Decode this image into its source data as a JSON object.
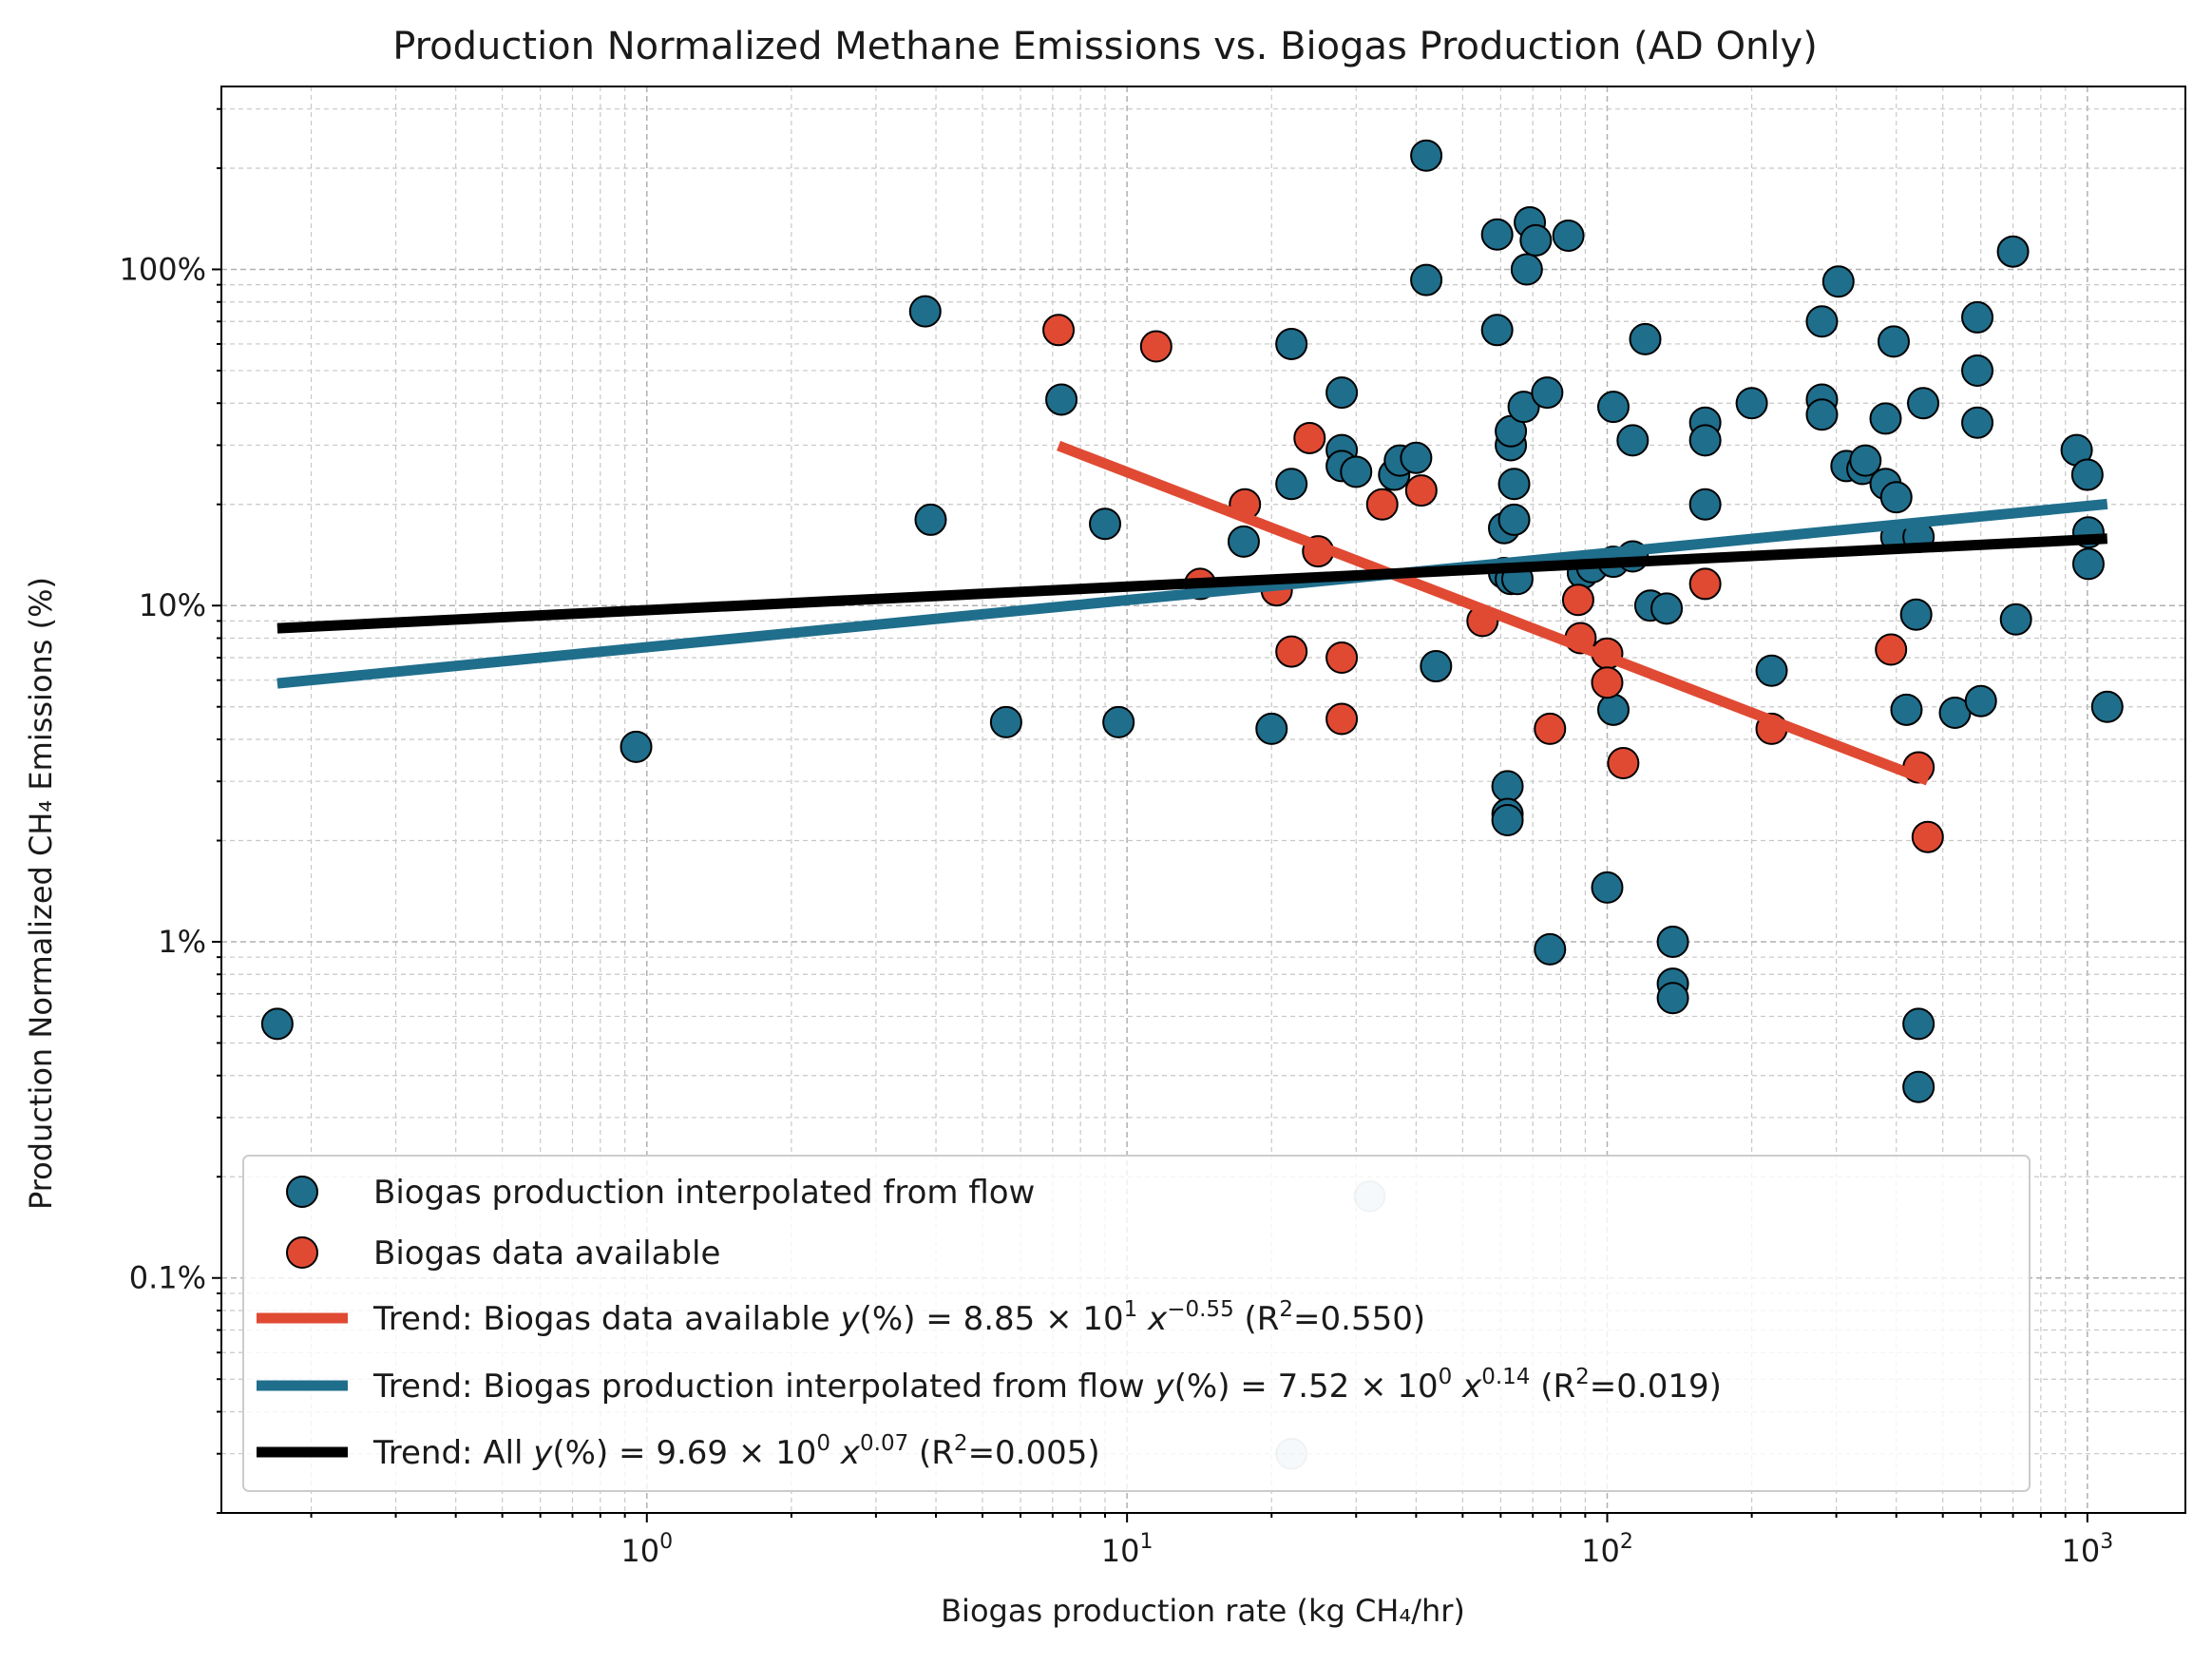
{
  "chart_data": {
    "type": "scatter",
    "title": "Production Normalized Methane Emissions vs. Biogas Production (AD Only)",
    "xlabel": "Biogas production rate (kg CH₄/hr)",
    "ylabel": "Production Normalized CH₄ Emissions (%)",
    "xscale": "log",
    "yscale": "log",
    "xlim": [
      0.13,
      1600
    ],
    "ylim": [
      0.02,
      350
    ],
    "x_ticks": [
      {
        "value": 1,
        "base": "10",
        "exp": "0"
      },
      {
        "value": 10,
        "base": "10",
        "exp": "1"
      },
      {
        "value": 100,
        "base": "10",
        "exp": "2"
      },
      {
        "value": 1000,
        "base": "10",
        "exp": "3"
      }
    ],
    "y_ticks": [
      {
        "value": 0.1,
        "label": "0.1%"
      },
      {
        "value": 1,
        "label": "1%"
      },
      {
        "value": 10,
        "label": "10%"
      },
      {
        "value": 100,
        "label": "100%"
      }
    ],
    "grid": true,
    "legend_position": "lower-left",
    "colors": {
      "interpolated": "#1f6e8c",
      "available": "#e04a33",
      "all": "#000000"
    },
    "series": [
      {
        "name": "Biogas production interpolated from flow",
        "kind": "scatter",
        "color": "#1f6e8c",
        "points": [
          [
            0.17,
            0.57
          ],
          [
            0.95,
            3.8
          ],
          [
            3.8,
            75
          ],
          [
            3.9,
            18
          ],
          [
            5.6,
            4.5
          ],
          [
            7.3,
            41
          ],
          [
            9.0,
            17.5
          ],
          [
            9.6,
            4.5
          ],
          [
            17.5,
            15.5
          ],
          [
            20,
            4.3
          ],
          [
            22,
            60
          ],
          [
            22,
            23
          ],
          [
            28,
            43
          ],
          [
            28,
            29
          ],
          [
            28,
            26
          ],
          [
            30,
            25
          ],
          [
            36,
            24.5
          ],
          [
            37,
            27
          ],
          [
            40,
            27.5
          ],
          [
            42,
            218
          ],
          [
            42,
            93
          ],
          [
            44,
            6.6
          ],
          [
            59,
            127
          ],
          [
            59,
            66
          ],
          [
            61,
            17
          ],
          [
            61,
            12.5
          ],
          [
            62,
            2.9
          ],
          [
            62,
            2.4
          ],
          [
            62,
            2.3
          ],
          [
            63,
            12
          ],
          [
            63,
            30
          ],
          [
            63,
            33
          ],
          [
            64,
            23
          ],
          [
            64,
            18
          ],
          [
            65,
            12
          ],
          [
            67,
            39
          ],
          [
            68,
            100
          ],
          [
            69,
            138
          ],
          [
            71,
            122
          ],
          [
            75,
            43
          ],
          [
            76,
            0.95
          ],
          [
            83,
            126
          ],
          [
            89,
            12.5
          ],
          [
            93,
            13
          ],
          [
            100,
            1.45
          ],
          [
            103,
            39
          ],
          [
            103,
            13.5
          ],
          [
            103,
            4.9
          ],
          [
            113,
            31
          ],
          [
            113,
            14
          ],
          [
            120,
            62
          ],
          [
            123,
            10
          ],
          [
            133,
            9.8
          ],
          [
            137,
            1.0
          ],
          [
            137,
            0.75
          ],
          [
            137,
            0.68
          ],
          [
            160,
            35
          ],
          [
            160,
            31
          ],
          [
            160,
            20
          ],
          [
            200,
            40
          ],
          [
            220,
            6.4
          ],
          [
            280,
            70
          ],
          [
            280,
            41
          ],
          [
            280,
            37
          ],
          [
            303,
            92
          ],
          [
            315,
            26
          ],
          [
            340,
            25.5
          ],
          [
            345,
            27
          ],
          [
            380,
            23
          ],
          [
            380,
            36
          ],
          [
            395,
            61
          ],
          [
            400,
            21
          ],
          [
            400,
            16
          ],
          [
            420,
            4.9
          ],
          [
            440,
            9.4
          ],
          [
            445,
            16
          ],
          [
            445,
            0.57
          ],
          [
            445,
            0.37
          ],
          [
            455,
            40
          ],
          [
            530,
            4.8
          ],
          [
            590,
            72
          ],
          [
            590,
            50
          ],
          [
            590,
            35
          ],
          [
            600,
            5.2
          ],
          [
            700,
            113
          ],
          [
            710,
            9.1
          ],
          [
            950,
            29
          ],
          [
            1000,
            24.5
          ],
          [
            1005,
            16.5
          ],
          [
            1005,
            13.3
          ],
          [
            1100,
            5.0
          ],
          [
            32,
            0.175
          ],
          [
            22,
            0.03
          ]
        ]
      },
      {
        "name": "Biogas data available",
        "kind": "scatter",
        "color": "#e04a33",
        "points": [
          [
            7.2,
            66
          ],
          [
            11.5,
            59
          ],
          [
            14.2,
            11.6
          ],
          [
            17.6,
            20
          ],
          [
            20.5,
            11.1
          ],
          [
            22,
            7.3
          ],
          [
            24,
            31.5
          ],
          [
            25,
            14.5
          ],
          [
            28,
            7.0
          ],
          [
            28,
            4.6
          ],
          [
            34,
            20
          ],
          [
            41,
            22
          ],
          [
            55,
            9.0
          ],
          [
            76,
            4.3
          ],
          [
            87,
            10.4
          ],
          [
            88,
            8.0
          ],
          [
            100,
            7.2
          ],
          [
            100,
            5.9
          ],
          [
            108,
            3.4
          ],
          [
            160,
            11.6
          ],
          [
            220,
            4.3
          ],
          [
            390,
            7.4
          ],
          [
            445,
            3.3
          ],
          [
            465,
            2.05
          ]
        ]
      },
      {
        "name": "Trend: Biogas data available",
        "kind": "trend",
        "color": "#e04a33",
        "coef": 88.5,
        "exponent": -0.55,
        "x_range": [
          7.2,
          465
        ],
        "label_prefix": "Trend: Biogas data available ",
        "coef_text": "8.85",
        "pow_text": "1",
        "exp_text": "−0.55",
        "r2_text": "=0.550)"
      },
      {
        "name": "Trend: Biogas production interpolated from flow",
        "kind": "trend",
        "color": "#1f6e8c",
        "coef": 7.52,
        "exponent": 0.14,
        "x_range": [
          0.17,
          1100
        ],
        "label_prefix": "Trend: Biogas production interpolated from flow ",
        "coef_text": "7.52",
        "pow_text": "0",
        "exp_text": "0.14",
        "r2_text": "=0.019)"
      },
      {
        "name": "Trend: All",
        "kind": "trend",
        "color": "#000000",
        "coef": 9.69,
        "exponent": 0.07,
        "x_range": [
          0.17,
          1100
        ],
        "label_prefix": "Trend: All ",
        "coef_text": "9.69",
        "pow_text": "0",
        "exp_text": "0.07",
        "r2_text": "=0.005)"
      }
    ]
  }
}
